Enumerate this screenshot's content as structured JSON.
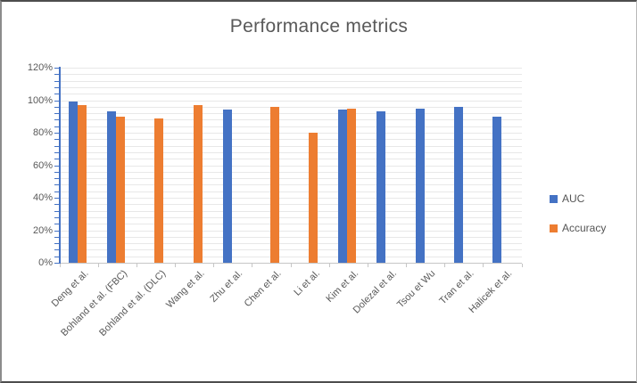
{
  "figure": {
    "title": "Performance metrics"
  },
  "chart_data": {
    "type": "bar",
    "title": "Performance metrics",
    "categories": [
      "Deng et al.",
      "Bohland et al. (FBC)",
      "Bohland et al. (DLC)",
      "Wang et al.",
      "Zhu et al.",
      "Chen et al.",
      "Li et al.",
      "Kim et al.",
      "Dolezal et al.",
      "Tsou et Wu",
      "Tran et al.",
      "Halicek et al."
    ],
    "series": [
      {
        "name": "AUC",
        "color": "#4472c4",
        "values": [
          99,
          93,
          null,
          null,
          94,
          null,
          null,
          94,
          93,
          95,
          96,
          90
        ]
      },
      {
        "name": "Accuracy",
        "color": "#ed7d31",
        "values": [
          97,
          90,
          89,
          97,
          null,
          96,
          80,
          95,
          null,
          null,
          null,
          null
        ]
      }
    ],
    "y_axis": {
      "min": 0,
      "max": 120,
      "major_unit": 20,
      "minor_unit": 4,
      "tick_labels": [
        "0%",
        "20%",
        "40%",
        "60%",
        "80%",
        "100%",
        "120%"
      ]
    },
    "x_axis": {
      "label_rotation_deg": 45
    },
    "legend": {
      "position": "right",
      "entries": [
        "AUC",
        "Accuracy"
      ]
    },
    "grid": true,
    "colors": {
      "auc": "#4472c4",
      "accuracy": "#ed7d31",
      "title_text": "#595959",
      "axis_text": "#595959",
      "gridline": "#e8e8e8",
      "y_axis_line": "#4472c4",
      "x_axis_line": "#c6c6c6"
    }
  }
}
